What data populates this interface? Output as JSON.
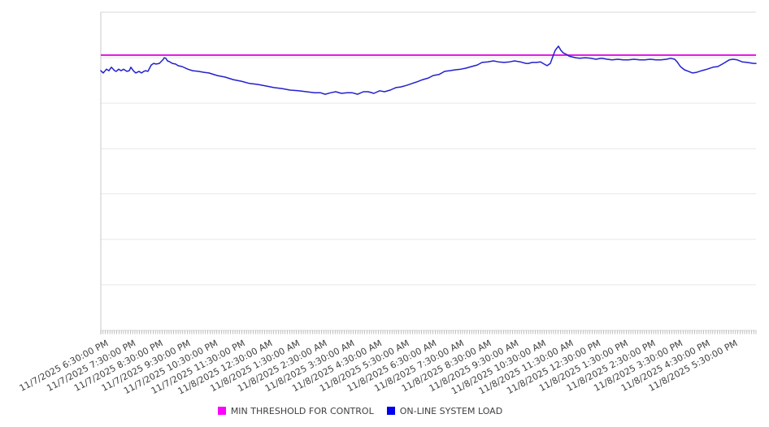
{
  "chart_data": {
    "type": "line",
    "title": "",
    "legend_position": "bottom-center",
    "x_axis": {
      "labels": [
        "11/7/2025 6:30:00 PM",
        "11/7/2025 7:30:00 PM",
        "11/7/2025 8:30:00 PM",
        "11/7/2025 9:30:00 PM",
        "11/7/2025 10:30:00 PM",
        "11/7/2025 11:30:00 PM",
        "11/8/2025 12:30:00 AM",
        "11/8/2025 1:30:00 AM",
        "11/8/2025 2:30:00 AM",
        "11/8/2025 3:30:00 AM",
        "11/8/2025 4:30:00 AM",
        "11/8/2025 5:30:00 AM",
        "11/8/2025 6:30:00 AM",
        "11/8/2025 7:30:00 AM",
        "11/8/2025 8:30:00 AM",
        "11/8/2025 9:30:00 AM",
        "11/8/2025 10:30:00 AM",
        "11/8/2025 11:30:00 AM",
        "11/8/2025 12:30:00 PM",
        "11/8/2025 1:30:00 PM",
        "11/8/2025 2:30:00 PM",
        "11/8/2025 3:30:00 PM",
        "11/8/2025 4:30:00 PM",
        "11/8/2025 5:30:00 PM"
      ],
      "minor_tick_count": 288,
      "label_rotation_deg": -28
    },
    "y_axis": {
      "labels_visible": false,
      "range": [
        0,
        100
      ],
      "gridline_values": [
        0,
        14.3,
        28.6,
        42.9,
        57.1,
        71.4,
        85.7,
        100
      ],
      "note": "no y-axis tick labels in source; values estimated as percent of plot height"
    },
    "series": [
      {
        "name": "MIN THRESHOLD FOR CONTROL",
        "kind": "constant-threshold",
        "color": "#E312E3",
        "legend_swatch_color": "#FF00FF",
        "value": 86.5
      },
      {
        "name": "ON-LINE SYSTEM LOAD",
        "kind": "line",
        "color": "#2121CC",
        "legend_swatch_color": "#0000EE",
        "points": [
          [
            0,
            81.6
          ],
          [
            3,
            80.9
          ],
          [
            7,
            82.1
          ],
          [
            10,
            81.6
          ],
          [
            13,
            82.7
          ],
          [
            17,
            81.6
          ],
          [
            19,
            81.4
          ],
          [
            22,
            82.1
          ],
          [
            25,
            81.6
          ],
          [
            28,
            82.1
          ],
          [
            32,
            81.4
          ],
          [
            35,
            81.6
          ],
          [
            37,
            82.7
          ],
          [
            40,
            81.6
          ],
          [
            43,
            80.9
          ],
          [
            47,
            81.4
          ],
          [
            50,
            80.9
          ],
          [
            53,
            81.4
          ],
          [
            55,
            81.6
          ],
          [
            58,
            81.4
          ],
          [
            62,
            83.4
          ],
          [
            65,
            83.9
          ],
          [
            68,
            83.7
          ],
          [
            72,
            83.9
          ],
          [
            75,
            84.7
          ],
          [
            77,
            85.2
          ],
          [
            78,
            85.7
          ],
          [
            80,
            85.5
          ],
          [
            82,
            84.7
          ],
          [
            85,
            84.4
          ],
          [
            88,
            83.9
          ],
          [
            92,
            83.7
          ],
          [
            95,
            83.2
          ],
          [
            100,
            82.9
          ],
          [
            107,
            82.1
          ],
          [
            113,
            81.6
          ],
          [
            120,
            81.4
          ],
          [
            127,
            81.1
          ],
          [
            133,
            80.9
          ],
          [
            143,
            80.1
          ],
          [
            153,
            79.6
          ],
          [
            163,
            78.8
          ],
          [
            173,
            78.3
          ],
          [
            183,
            77.6
          ],
          [
            193,
            77.3
          ],
          [
            203,
            76.8
          ],
          [
            213,
            76.3
          ],
          [
            223,
            76.0
          ],
          [
            233,
            75.5
          ],
          [
            243,
            75.3
          ],
          [
            253,
            75.0
          ],
          [
            263,
            74.7
          ],
          [
            270,
            74.7
          ],
          [
            276,
            74.2
          ],
          [
            283,
            74.7
          ],
          [
            289,
            75.0
          ],
          [
            296,
            74.5
          ],
          [
            303,
            74.7
          ],
          [
            309,
            74.7
          ],
          [
            316,
            74.2
          ],
          [
            323,
            75.0
          ],
          [
            329,
            75.0
          ],
          [
            336,
            74.5
          ],
          [
            343,
            75.3
          ],
          [
            349,
            75.0
          ],
          [
            356,
            75.5
          ],
          [
            363,
            76.3
          ],
          [
            369,
            76.5
          ],
          [
            376,
            77.0
          ],
          [
            383,
            77.6
          ],
          [
            389,
            78.1
          ],
          [
            396,
            78.8
          ],
          [
            403,
            79.3
          ],
          [
            409,
            80.1
          ],
          [
            416,
            80.4
          ],
          [
            423,
            81.4
          ],
          [
            429,
            81.6
          ],
          [
            436,
            81.9
          ],
          [
            443,
            82.1
          ],
          [
            449,
            82.4
          ],
          [
            456,
            82.9
          ],
          [
            463,
            83.4
          ],
          [
            469,
            84.2
          ],
          [
            476,
            84.4
          ],
          [
            483,
            84.7
          ],
          [
            489,
            84.4
          ],
          [
            496,
            84.2
          ],
          [
            503,
            84.4
          ],
          [
            509,
            84.7
          ],
          [
            516,
            84.4
          ],
          [
            523,
            83.9
          ],
          [
            526,
            83.9
          ],
          [
            531,
            84.2
          ],
          [
            536,
            84.2
          ],
          [
            541,
            84.4
          ],
          [
            544,
            83.9
          ],
          [
            549,
            83.2
          ],
          [
            553,
            83.9
          ],
          [
            556,
            86.0
          ],
          [
            559,
            88.0
          ],
          [
            563,
            89.3
          ],
          [
            566,
            88.0
          ],
          [
            569,
            87.2
          ],
          [
            573,
            86.7
          ],
          [
            576,
            86.2
          ],
          [
            579,
            86.0
          ],
          [
            584,
            85.7
          ],
          [
            589,
            85.5
          ],
          [
            596,
            85.7
          ],
          [
            603,
            85.5
          ],
          [
            609,
            85.2
          ],
          [
            616,
            85.5
          ],
          [
            623,
            85.2
          ],
          [
            629,
            85.0
          ],
          [
            636,
            85.2
          ],
          [
            643,
            85.0
          ],
          [
            649,
            85.0
          ],
          [
            656,
            85.2
          ],
          [
            663,
            85.0
          ],
          [
            669,
            85.0
          ],
          [
            676,
            85.2
          ],
          [
            683,
            85.0
          ],
          [
            689,
            85.0
          ],
          [
            696,
            85.2
          ],
          [
            701,
            85.5
          ],
          [
            706,
            85.2
          ],
          [
            709,
            84.4
          ],
          [
            713,
            82.9
          ],
          [
            718,
            81.9
          ],
          [
            723,
            81.4
          ],
          [
            728,
            80.9
          ],
          [
            733,
            81.1
          ],
          [
            739,
            81.6
          ],
          [
            746,
            82.1
          ],
          [
            753,
            82.7
          ],
          [
            759,
            82.9
          ],
          [
            766,
            83.9
          ],
          [
            773,
            85.0
          ],
          [
            778,
            85.2
          ],
          [
            783,
            85.0
          ],
          [
            789,
            84.4
          ],
          [
            795,
            84.2
          ],
          [
            803,
            83.9
          ],
          [
            806,
            83.9
          ]
        ]
      }
    ]
  }
}
